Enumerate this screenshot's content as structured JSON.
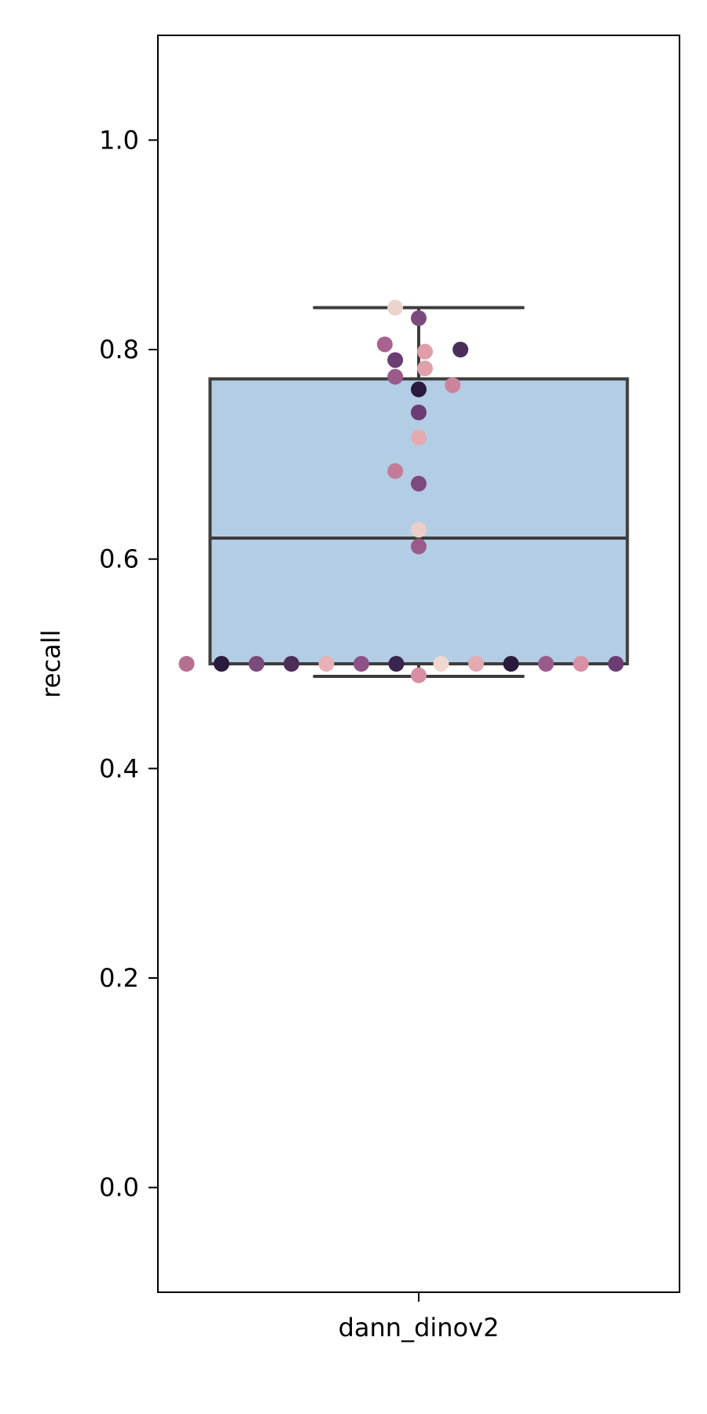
{
  "chart_data": {
    "type": "box",
    "title": "",
    "xlabel": "",
    "ylabel": "recall",
    "ylim": [
      -0.1,
      1.1
    ],
    "yticks": [
      0.0,
      0.2,
      0.4,
      0.6,
      0.8,
      1.0
    ],
    "ytick_labels": [
      "0.0",
      "0.2",
      "0.4",
      "0.6",
      "0.8",
      "1.0"
    ],
    "categories": [
      "dann_dinov2"
    ],
    "grid": false,
    "box": {
      "category": "dann_dinov2",
      "whisker_low": 0.488,
      "q1": 0.5,
      "median": 0.62,
      "q3": 0.772,
      "whisker_high": 0.84,
      "fill": "#b3cde4",
      "edge": "#3d3d3d"
    },
    "points": [
      {
        "dx": -0.045,
        "y": 0.84,
        "color": "#ecd3cc"
      },
      {
        "dx": 0.0,
        "y": 0.83,
        "color": "#7d4a7e"
      },
      {
        "dx": -0.065,
        "y": 0.805,
        "color": "#a86391"
      },
      {
        "dx": 0.012,
        "y": 0.798,
        "color": "#df9ea9"
      },
      {
        "dx": 0.08,
        "y": 0.8,
        "color": "#4a2d58"
      },
      {
        "dx": -0.045,
        "y": 0.79,
        "color": "#6b3d74"
      },
      {
        "dx": 0.012,
        "y": 0.782,
        "color": "#dfa2ad"
      },
      {
        "dx": -0.045,
        "y": 0.774,
        "color": "#9a5a8a"
      },
      {
        "dx": 0.065,
        "y": 0.766,
        "color": "#cc849d"
      },
      {
        "dx": 0.0,
        "y": 0.762,
        "color": "#2a1a3c"
      },
      {
        "dx": 0.0,
        "y": 0.74,
        "color": "#6b3d74"
      },
      {
        "dx": 0.0,
        "y": 0.716,
        "color": "#e4a9b1"
      },
      {
        "dx": -0.045,
        "y": 0.684,
        "color": "#c27c99"
      },
      {
        "dx": 0.0,
        "y": 0.672,
        "color": "#7d4a7e"
      },
      {
        "dx": 0.0,
        "y": 0.628,
        "color": "#eccdc7"
      },
      {
        "dx": 0.0,
        "y": 0.612,
        "color": "#9a5a8a"
      },
      {
        "dx": -0.445,
        "y": 0.5,
        "color": "#b5708f"
      },
      {
        "dx": -0.378,
        "y": 0.5,
        "color": "#2a1a3c"
      },
      {
        "dx": -0.311,
        "y": 0.5,
        "color": "#7d4a7e"
      },
      {
        "dx": -0.244,
        "y": 0.5,
        "color": "#4a2d58"
      },
      {
        "dx": -0.177,
        "y": 0.5,
        "color": "#e6b2b5"
      },
      {
        "dx": -0.11,
        "y": 0.5,
        "color": "#8e5287"
      },
      {
        "dx": -0.043,
        "y": 0.5,
        "color": "#3a2450"
      },
      {
        "dx": 0.0,
        "y": 0.489,
        "color": "#d88fa3"
      },
      {
        "dx": 0.043,
        "y": 0.5,
        "color": "#f0d8d0"
      },
      {
        "dx": 0.11,
        "y": 0.5,
        "color": "#e4a9b1"
      },
      {
        "dx": 0.177,
        "y": 0.5,
        "color": "#2a1a3c"
      },
      {
        "dx": 0.244,
        "y": 0.5,
        "color": "#9a5a8a"
      },
      {
        "dx": 0.311,
        "y": 0.5,
        "color": "#d890a4"
      },
      {
        "dx": 0.378,
        "y": 0.5,
        "color": "#6b3d74"
      }
    ]
  }
}
